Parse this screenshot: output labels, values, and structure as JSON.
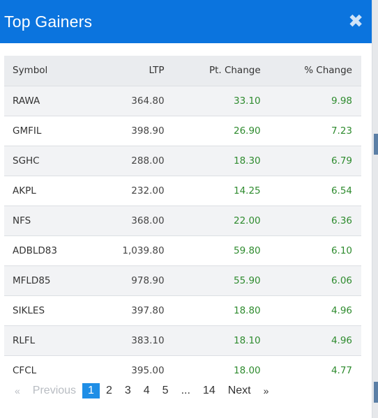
{
  "modal": {
    "title": "Top Gainers",
    "close_glyph": "✖"
  },
  "table": {
    "headers": [
      "Symbol",
      "LTP",
      "Pt. Change",
      "% Change"
    ],
    "rows": [
      {
        "symbol": "RAWA",
        "ltp": "364.80",
        "pt_change": "33.10",
        "pct_change": "9.98"
      },
      {
        "symbol": "GMFIL",
        "ltp": "398.90",
        "pt_change": "26.90",
        "pct_change": "7.23"
      },
      {
        "symbol": "SGHC",
        "ltp": "288.00",
        "pt_change": "18.30",
        "pct_change": "6.79"
      },
      {
        "symbol": "AKPL",
        "ltp": "232.00",
        "pt_change": "14.25",
        "pct_change": "6.54"
      },
      {
        "symbol": "NFS",
        "ltp": "368.00",
        "pt_change": "22.00",
        "pct_change": "6.36"
      },
      {
        "symbol": "ADBLD83",
        "ltp": "1,039.80",
        "pt_change": "59.80",
        "pct_change": "6.10"
      },
      {
        "symbol": "MFLD85",
        "ltp": "978.90",
        "pt_change": "55.90",
        "pct_change": "6.06"
      },
      {
        "symbol": "SIKLES",
        "ltp": "397.80",
        "pt_change": "18.80",
        "pct_change": "4.96"
      },
      {
        "symbol": "RLFL",
        "ltp": "383.10",
        "pt_change": "18.10",
        "pct_change": "4.96"
      },
      {
        "symbol": "CFCL",
        "ltp": "395.00",
        "pt_change": "18.00",
        "pct_change": "4.77"
      }
    ]
  },
  "pagination": {
    "prev_arrow": "«",
    "prev_label": "Previous",
    "pages": [
      "1",
      "2",
      "3",
      "4",
      "5",
      "...",
      "14"
    ],
    "current_page": "1",
    "next_label": "Next",
    "next_arrow": "»"
  },
  "colors": {
    "header_bg": "#0b74de",
    "positive": "#2e8b2e",
    "active_page": "#1f8ee6"
  }
}
